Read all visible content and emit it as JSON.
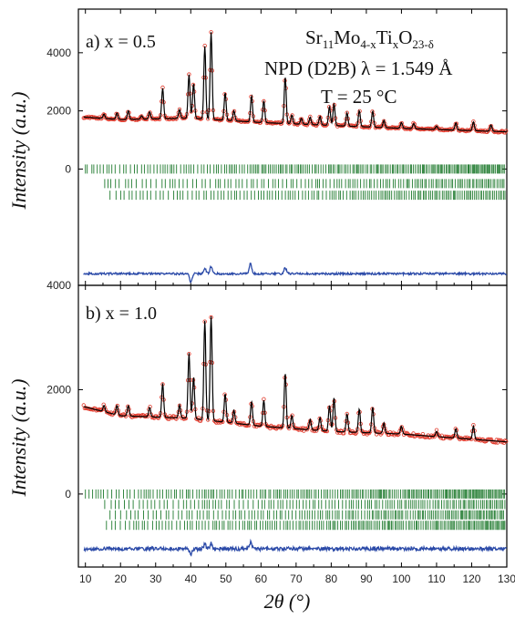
{
  "chart_data": [
    {
      "type": "line",
      "panel_label": "a) x = 0.5",
      "annotations": {
        "formula": {
          "base": "Sr",
          "sub1": "11",
          "el2": "Mo",
          "sub2": "4-x",
          "el3": "Ti",
          "sub3": "x",
          "el4": "O",
          "sub4": "23-δ"
        },
        "instrument": "NPD (D2B) λ = 1.549 Å",
        "temperature": "T = 25 °C"
      },
      "xlabel": "2θ (°)",
      "ylabel": "Intensity (a.u.)",
      "xlim": [
        8,
        130
      ],
      "ylim": [
        -4000,
        5500
      ],
      "yticks": [
        0,
        2000,
        4000
      ],
      "xticks": [
        10,
        20,
        30,
        40,
        50,
        60,
        70,
        80,
        90,
        100,
        110,
        120,
        130
      ],
      "background": [
        [
          8,
          1800
        ],
        [
          20,
          1700
        ],
        [
          40,
          1750
        ],
        [
          60,
          1600
        ],
        [
          80,
          1500
        ],
        [
          100,
          1400
        ],
        [
          130,
          1280
        ]
      ],
      "peaks": [
        {
          "x": 15.3,
          "h": 150
        },
        {
          "x": 19.0,
          "h": 220
        },
        {
          "x": 22.2,
          "h": 300
        },
        {
          "x": 26.0,
          "h": 120
        },
        {
          "x": 28.3,
          "h": 250
        },
        {
          "x": 32.0,
          "h": 1050
        },
        {
          "x": 36.8,
          "h": 300
        },
        {
          "x": 39.5,
          "h": 1500
        },
        {
          "x": 40.8,
          "h": 1200
        },
        {
          "x": 44.0,
          "h": 2500
        },
        {
          "x": 45.8,
          "h": 3000
        },
        {
          "x": 49.8,
          "h": 950
        },
        {
          "x": 52.3,
          "h": 350
        },
        {
          "x": 57.3,
          "h": 900
        },
        {
          "x": 60.8,
          "h": 750
        },
        {
          "x": 66.9,
          "h": 1600
        },
        {
          "x": 68.8,
          "h": 300
        },
        {
          "x": 71.5,
          "h": 200
        },
        {
          "x": 74.0,
          "h": 250
        },
        {
          "x": 76.8,
          "h": 300
        },
        {
          "x": 79.5,
          "h": 650
        },
        {
          "x": 80.8,
          "h": 750
        },
        {
          "x": 84.5,
          "h": 450
        },
        {
          "x": 88.0,
          "h": 550
        },
        {
          "x": 91.8,
          "h": 550
        },
        {
          "x": 95.0,
          "h": 250
        },
        {
          "x": 100.0,
          "h": 200
        },
        {
          "x": 103.5,
          "h": 180
        },
        {
          "x": 110.0,
          "h": 120
        },
        {
          "x": 115.5,
          "h": 250
        },
        {
          "x": 120.5,
          "h": 300
        },
        {
          "x": 125.5,
          "h": 220
        }
      ],
      "bragg_tick_rows": [
        {
          "y": 0,
          "start": 10,
          "step": 0.95
        },
        {
          "y": -500,
          "start": 15.5,
          "step": 1.4
        },
        {
          "y": -900,
          "start": 17.0,
          "step": 1.25
        }
      ],
      "difference_offset": -3600,
      "difference_features": [
        [
          40.0,
          -300
        ],
        [
          44.0,
          180
        ],
        [
          45.8,
          250
        ],
        [
          57.0,
          350
        ],
        [
          66.9,
          200
        ]
      ],
      "colors": {
        "observed": "#e0392b",
        "calculated": "#000000",
        "difference": "#2b4aa8",
        "bragg": "#1f7a2e"
      }
    },
    {
      "type": "line",
      "panel_label": "b) x = 1.0",
      "xlabel": "2θ (°)",
      "ylabel": "Intensity (a.u.)",
      "xlim": [
        8,
        130
      ],
      "ylim": [
        -1400,
        4000
      ],
      "yticks": [
        0,
        2000,
        4000
      ],
      "xticks": [
        10,
        20,
        30,
        40,
        50,
        60,
        70,
        80,
        90,
        100,
        110,
        120,
        130
      ],
      "background": [
        [
          8,
          1700
        ],
        [
          20,
          1500
        ],
        [
          40,
          1450
        ],
        [
          60,
          1300
        ],
        [
          80,
          1200
        ],
        [
          100,
          1150
        ],
        [
          130,
          1000
        ]
      ],
      "peaks": [
        {
          "x": 15.3,
          "h": 120
        },
        {
          "x": 19.0,
          "h": 180
        },
        {
          "x": 22.2,
          "h": 200
        },
        {
          "x": 28.3,
          "h": 180
        },
        {
          "x": 32.0,
          "h": 650
        },
        {
          "x": 36.8,
          "h": 250
        },
        {
          "x": 39.5,
          "h": 1250
        },
        {
          "x": 40.8,
          "h": 800
        },
        {
          "x": 44.0,
          "h": 1900
        },
        {
          "x": 45.8,
          "h": 2000
        },
        {
          "x": 49.8,
          "h": 550
        },
        {
          "x": 52.3,
          "h": 250
        },
        {
          "x": 57.3,
          "h": 450
        },
        {
          "x": 60.8,
          "h": 500
        },
        {
          "x": 66.9,
          "h": 1050
        },
        {
          "x": 68.8,
          "h": 250
        },
        {
          "x": 74.0,
          "h": 200
        },
        {
          "x": 76.8,
          "h": 250
        },
        {
          "x": 79.5,
          "h": 500
        },
        {
          "x": 80.8,
          "h": 650
        },
        {
          "x": 84.5,
          "h": 350
        },
        {
          "x": 88.0,
          "h": 450
        },
        {
          "x": 91.8,
          "h": 500
        },
        {
          "x": 95.0,
          "h": 200
        },
        {
          "x": 100.0,
          "h": 150
        },
        {
          "x": 110.0,
          "h": 100
        },
        {
          "x": 115.5,
          "h": 180
        },
        {
          "x": 120.5,
          "h": 250
        }
      ],
      "bragg_tick_rows": [
        {
          "y": 0,
          "start": 10,
          "step": 0.95
        },
        {
          "y": -200,
          "start": 15.5,
          "step": 1.4
        },
        {
          "y": -400,
          "start": 17.0,
          "step": 1.25
        },
        {
          "y": -600,
          "start": 16.0,
          "step": 1.1
        }
      ],
      "difference_offset": -1050,
      "difference_features": [
        [
          40.0,
          -100
        ],
        [
          44.0,
          80
        ],
        [
          45.8,
          100
        ],
        [
          57.0,
          120
        ]
      ],
      "colors": {
        "observed": "#e0392b",
        "calculated": "#000000",
        "difference": "#2b4aa8",
        "bragg": "#1f7a2e"
      }
    }
  ]
}
